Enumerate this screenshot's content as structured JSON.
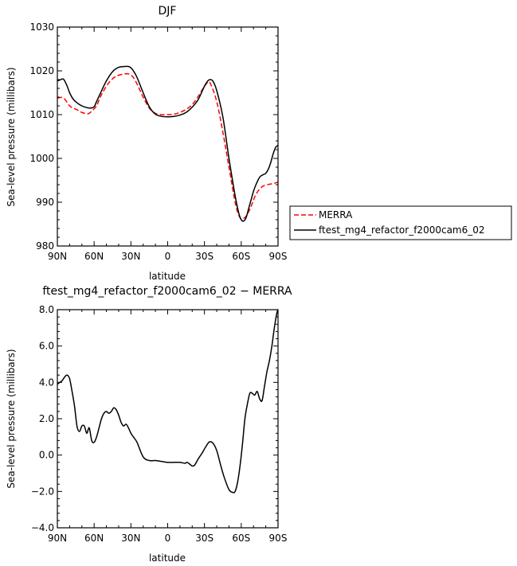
{
  "chart_data": [
    {
      "type": "line",
      "title": "DJF",
      "xlabel": "latitude",
      "ylabel": "Sea-level pressure (millibars)",
      "xlim": [
        90,
        -90
      ],
      "ylim": [
        980,
        1030
      ],
      "x_ticks": [
        {
          "value": 90,
          "label": "90N"
        },
        {
          "value": 60,
          "label": "60N"
        },
        {
          "value": 30,
          "label": "30N"
        },
        {
          "value": 0,
          "label": "0"
        },
        {
          "value": -30,
          "label": "30S"
        },
        {
          "value": -60,
          "label": "60S"
        },
        {
          "value": -90,
          "label": "90S"
        }
      ],
      "y_ticks": [
        {
          "value": 980,
          "label": "980"
        },
        {
          "value": 990,
          "label": "990"
        },
        {
          "value": 1000,
          "label": "1000"
        },
        {
          "value": 1010,
          "label": "1010"
        },
        {
          "value": 1020,
          "label": "1020"
        },
        {
          "value": 1030,
          "label": "1030"
        }
      ],
      "legend_position": "right",
      "series": [
        {
          "name": "MERRA",
          "color": "#ff0000",
          "dash": "dashed",
          "x": [
            90,
            85,
            80,
            77,
            73,
            70,
            65,
            62,
            58,
            55,
            50,
            45,
            40,
            35,
            32,
            30,
            28,
            25,
            20,
            15,
            10,
            5,
            0,
            -5,
            -10,
            -15,
            -20,
            -25,
            -30,
            -33,
            -35,
            -40,
            -45,
            -50,
            -55,
            -58,
            -60,
            -62,
            -64,
            -66,
            -68,
            -70,
            -72,
            -75,
            -78,
            -80,
            -83,
            -85,
            -88,
            -90
          ],
          "y": [
            1013.8,
            1013.8,
            1012.0,
            1011.5,
            1011.0,
            1010.5,
            1010.2,
            1010.8,
            1012.0,
            1014.0,
            1016.5,
            1018.2,
            1019.0,
            1019.3,
            1019.3,
            1019.0,
            1018.5,
            1017.0,
            1014.0,
            1011.5,
            1010.3,
            1010.0,
            1010.0,
            1010.1,
            1010.5,
            1011.2,
            1012.3,
            1014.2,
            1016.5,
            1017.4,
            1017.0,
            1013.0,
            1006.0,
            998.0,
            990.0,
            987.0,
            986.2,
            986.3,
            986.8,
            987.8,
            989.0,
            990.5,
            991.8,
            993.0,
            993.7,
            993.9,
            994.1,
            994.2,
            994.4,
            994.6
          ]
        },
        {
          "name": "ftest_mg4_refactor_f2000cam6_02",
          "color": "#000000",
          "dash": "solid",
          "x": [
            90,
            88,
            85,
            82,
            80,
            77,
            73,
            70,
            66,
            63,
            60,
            58,
            55,
            50,
            45,
            40,
            35,
            32,
            30,
            28,
            25,
            20,
            15,
            10,
            5,
            0,
            -5,
            -10,
            -15,
            -20,
            -25,
            -30,
            -33,
            -35,
            -37,
            -40,
            -45,
            -50,
            -55,
            -58,
            -60,
            -62,
            -64,
            -66,
            -68,
            -70,
            -72,
            -75,
            -78,
            -80,
            -82,
            -84,
            -86,
            -88,
            -90
          ],
          "y": [
            1017.7,
            1017.9,
            1018.1,
            1016.5,
            1015.0,
            1013.5,
            1012.5,
            1012.0,
            1011.6,
            1011.5,
            1011.8,
            1013.0,
            1014.8,
            1017.7,
            1019.8,
            1020.8,
            1021.0,
            1021.0,
            1020.7,
            1020.0,
            1018.5,
            1015.0,
            1011.8,
            1010.1,
            1009.6,
            1009.5,
            1009.6,
            1009.9,
            1010.5,
            1011.7,
            1013.5,
            1016.5,
            1017.8,
            1018.0,
            1017.6,
            1015.5,
            1009.5,
            1000.0,
            991.5,
            987.5,
            986.0,
            985.7,
            986.5,
            988.5,
            990.5,
            992.5,
            994.0,
            995.7,
            996.3,
            996.6,
            997.5,
            999.0,
            1001.0,
            1002.5,
            1003.0
          ]
        }
      ]
    },
    {
      "type": "line",
      "title": "ftest_mg4_refactor_f2000cam6_02 − MERRA",
      "xlabel": "latitude",
      "ylabel": "Sea-level pressure (millibars)",
      "xlim": [
        90,
        -90
      ],
      "ylim": [
        -4.0,
        8.0
      ],
      "x_ticks": [
        {
          "value": 90,
          "label": "90N"
        },
        {
          "value": 60,
          "label": "60N"
        },
        {
          "value": 30,
          "label": "30N"
        },
        {
          "value": 0,
          "label": "0"
        },
        {
          "value": -30,
          "label": "30S"
        },
        {
          "value": -60,
          "label": "60S"
        },
        {
          "value": -90,
          "label": "90S"
        }
      ],
      "y_ticks": [
        {
          "value": -4.0,
          "label": "−4.0"
        },
        {
          "value": -2.0,
          "label": "−2.0"
        },
        {
          "value": 0.0,
          "label": "0.0"
        },
        {
          "value": 2.0,
          "label": "2.0"
        },
        {
          "value": 4.0,
          "label": "4.0"
        },
        {
          "value": 6.0,
          "label": "6.0"
        },
        {
          "value": 8.0,
          "label": "8.0"
        }
      ],
      "series": [
        {
          "name": "",
          "color": "#000000",
          "dash": "solid",
          "x": [
            90,
            88,
            86,
            84,
            82,
            80,
            78,
            76,
            74,
            72,
            70,
            68,
            66,
            64,
            62,
            60,
            58,
            56,
            54,
            52,
            50,
            48,
            46,
            44,
            42,
            40,
            38,
            36,
            34,
            32,
            30,
            28,
            25,
            20,
            15,
            10,
            5,
            0,
            -5,
            -10,
            -14,
            -16,
            -18,
            -20,
            -22,
            -25,
            -28,
            -31,
            -34,
            -37,
            -40,
            -43,
            -46,
            -50,
            -53,
            -55,
            -57,
            -59,
            -61,
            -63,
            -65,
            -67,
            -69,
            -71,
            -73,
            -75,
            -77,
            -79,
            -81,
            -83,
            -85,
            -87,
            -89,
            -90
          ],
          "y": [
            3.9,
            4.0,
            4.1,
            4.3,
            4.4,
            4.2,
            3.5,
            2.7,
            1.6,
            1.3,
            1.6,
            1.6,
            1.2,
            1.5,
            0.8,
            0.7,
            1.0,
            1.5,
            2.0,
            2.3,
            2.4,
            2.3,
            2.4,
            2.6,
            2.5,
            2.2,
            1.8,
            1.6,
            1.7,
            1.5,
            1.2,
            1.0,
            0.7,
            -0.1,
            -0.3,
            -0.3,
            -0.35,
            -0.4,
            -0.4,
            -0.4,
            -0.45,
            -0.4,
            -0.5,
            -0.6,
            -0.55,
            -0.2,
            0.1,
            0.45,
            0.72,
            0.65,
            0.25,
            -0.5,
            -1.2,
            -1.9,
            -2.05,
            -2.0,
            -1.5,
            -0.6,
            0.6,
            2.0,
            2.8,
            3.4,
            3.4,
            3.3,
            3.5,
            3.1,
            3.0,
            3.8,
            4.6,
            5.2,
            6.0,
            7.0,
            7.8,
            8.0
          ]
        }
      ]
    }
  ]
}
